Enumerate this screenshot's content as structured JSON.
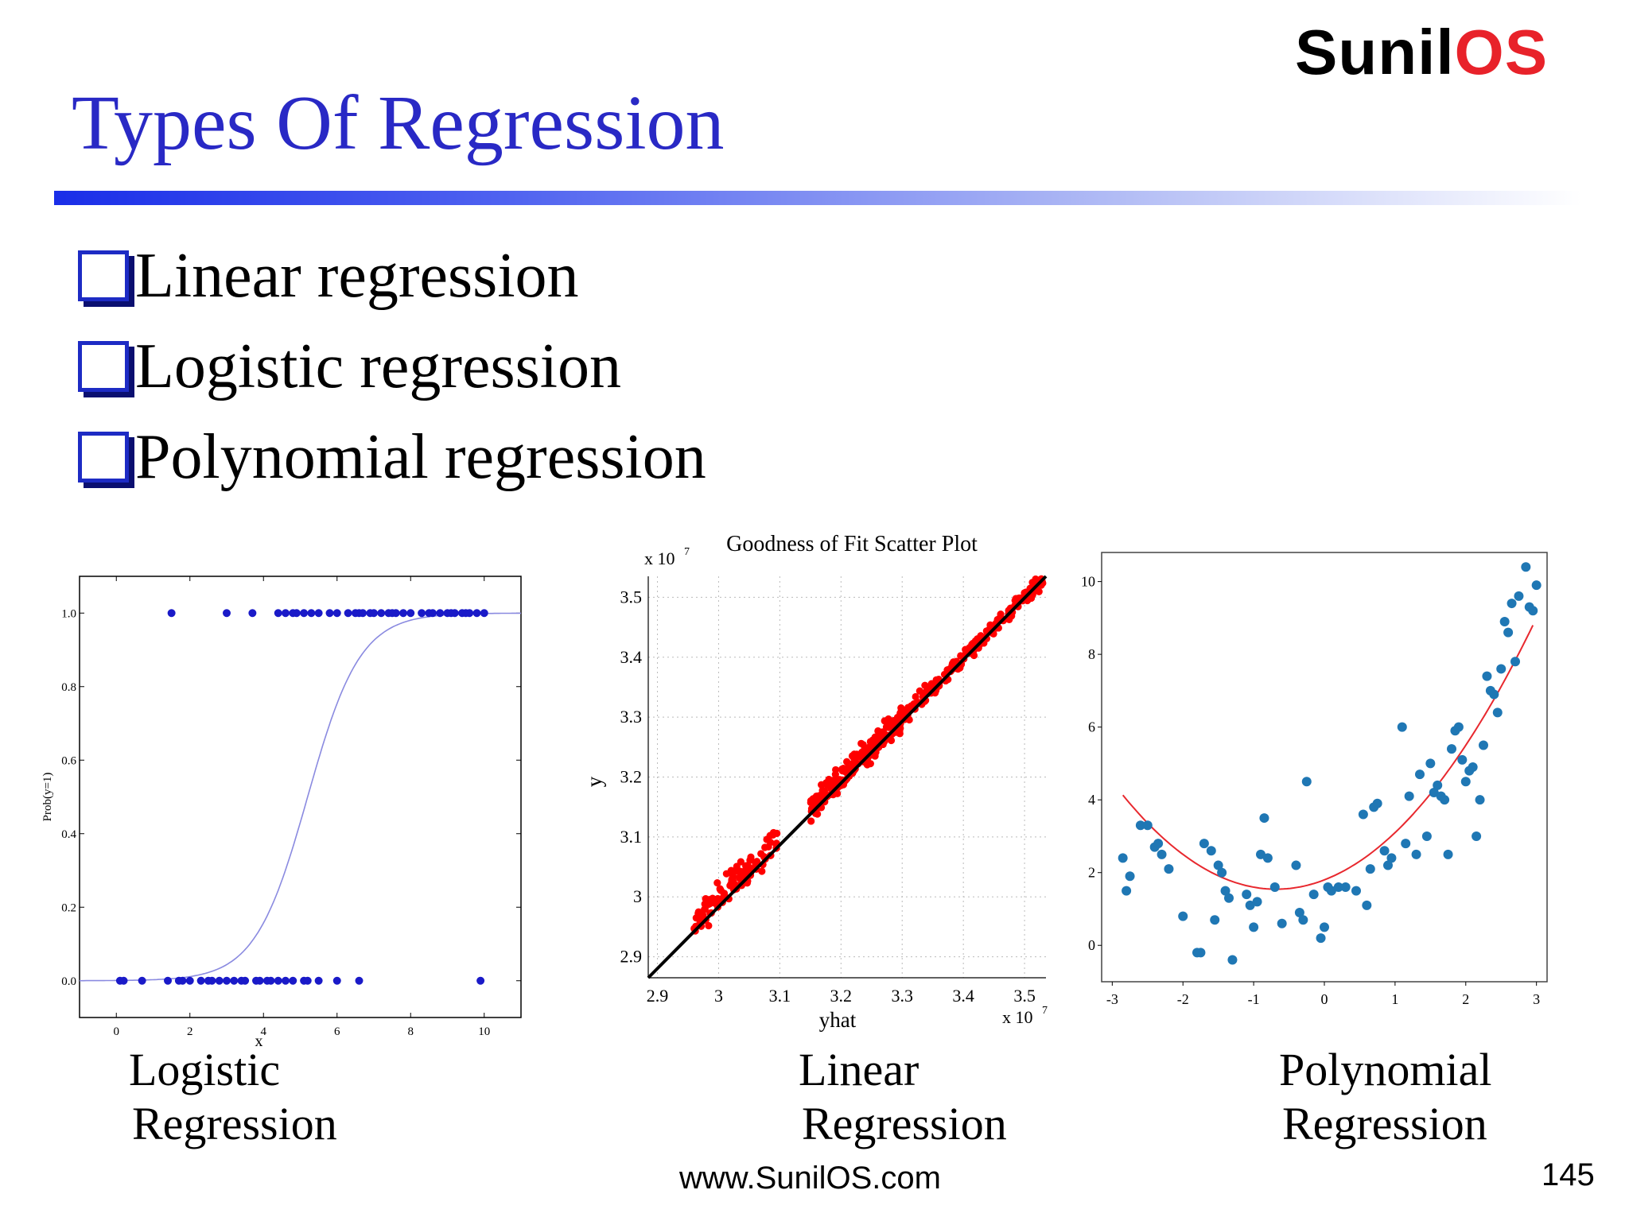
{
  "logo": {
    "dark_text": "Sunil",
    "red_text": "OS"
  },
  "title": "Types Of Regression",
  "bullets": [
    "Linear regression",
    "Logistic regression",
    "Polynomial regression"
  ],
  "plot_labels": {
    "logistic": [
      "Logistic",
      "Regression"
    ],
    "linear": [
      "Linear",
      "Regression"
    ],
    "polynomial": [
      "Polynomial",
      "Regression"
    ]
  },
  "footer": {
    "url": "www.SunilOS.com",
    "page": "145"
  },
  "colors": {
    "accent": "#2929c5",
    "logo_red": "#e8222a",
    "logistic_points": "#1a1ac8",
    "logistic_curve": "#8a8ae0",
    "linear_points": "#ff0000",
    "linear_line": "#000000",
    "poly_points": "#1f77b4",
    "poly_curve": "#e8282e"
  },
  "chart_data": [
    {
      "type": "scatter",
      "name": "logistic",
      "xlabel": "x",
      "ylabel": "Prob(y=1)",
      "xlim": [
        -1,
        11
      ],
      "ylim": [
        -0.1,
        1.1
      ],
      "xticks": [
        0,
        2,
        4,
        6,
        8,
        10
      ],
      "yticks": [
        "0.0",
        "0.2",
        "0.4",
        "0.6",
        "0.8",
        "1.0"
      ],
      "curve": {
        "midpoint": 5.2,
        "steepness": 1.4
      },
      "points_y1_x": [
        1.5,
        3.0,
        3.7,
        4.4,
        4.6,
        4.8,
        4.9,
        5.1,
        5.3,
        5.5,
        5.8,
        6.0,
        6.3,
        6.5,
        6.6,
        6.7,
        6.9,
        7.0,
        7.2,
        7.4,
        7.5,
        7.6,
        7.8,
        8.0,
        8.3,
        8.5,
        8.6,
        8.8,
        9.0,
        9.1,
        9.2,
        9.4,
        9.5,
        9.6,
        9.8,
        10.0
      ],
      "points_y0_x": [
        0.1,
        0.2,
        0.7,
        1.4,
        1.7,
        1.8,
        2.0,
        2.3,
        2.5,
        2.6,
        2.8,
        3.0,
        3.2,
        3.4,
        3.5,
        3.8,
        3.9,
        4.1,
        4.2,
        4.4,
        4.6,
        4.8,
        5.1,
        5.2,
        5.5,
        6.0,
        6.6,
        9.9
      ]
    },
    {
      "type": "scatter",
      "name": "linear",
      "title": "Goodness of Fit Scatter Plot",
      "xlabel": "yhat",
      "ylabel": "y",
      "scale_label_x": "x 10",
      "scale_label_y": "x 10",
      "scale_exp": "7",
      "xlim": [
        2.885,
        3.535
      ],
      "ylim": [
        2.865,
        3.535
      ],
      "xticks": [
        "2.9",
        "3",
        "3.1",
        "3.2",
        "3.3",
        "3.4",
        "3.5"
      ],
      "yticks": [
        "2.9",
        "3",
        "3.1",
        "3.2",
        "3.3",
        "3.4",
        "3.5"
      ],
      "fit_line": [
        [
          2.885,
          2.865
        ],
        [
          3.535,
          3.535
        ]
      ],
      "clusters": [
        {
          "from": 2.96,
          "to": 3.1,
          "count": 110,
          "spread": 0.035
        },
        {
          "from": 3.15,
          "to": 3.3,
          "count": 200,
          "spread": 0.03
        },
        {
          "from": 3.3,
          "to": 3.53,
          "count": 170,
          "spread": 0.02
        }
      ]
    },
    {
      "type": "scatter",
      "name": "polynomial",
      "xlim": [
        -3.15,
        3.15
      ],
      "ylim": [
        -1.0,
        10.8
      ],
      "xticks": [
        "-3",
        "-2",
        "-1",
        "0",
        "1",
        "2",
        "3"
      ],
      "yticks": [
        "0",
        "2",
        "4",
        "6",
        "8",
        "10"
      ],
      "curve_coeffs": [
        1.8,
        0.75,
        0.55
      ],
      "points": [
        [
          -2.85,
          2.4
        ],
        [
          -2.8,
          1.5
        ],
        [
          -2.75,
          1.9
        ],
        [
          -2.6,
          3.3
        ],
        [
          -2.5,
          3.3
        ],
        [
          -2.4,
          2.7
        ],
        [
          -2.35,
          2.8
        ],
        [
          -2.3,
          2.5
        ],
        [
          -2.2,
          2.1
        ],
        [
          -2.0,
          0.8
        ],
        [
          -1.8,
          -0.2
        ],
        [
          -1.75,
          -0.2
        ],
        [
          -1.7,
          2.8
        ],
        [
          -1.6,
          2.6
        ],
        [
          -1.55,
          0.7
        ],
        [
          -1.5,
          2.2
        ],
        [
          -1.45,
          2.0
        ],
        [
          -1.4,
          1.5
        ],
        [
          -1.35,
          1.3
        ],
        [
          -1.3,
          -0.4
        ],
        [
          -1.1,
          1.4
        ],
        [
          -1.05,
          1.1
        ],
        [
          -1.0,
          0.5
        ],
        [
          -0.95,
          1.2
        ],
        [
          -0.9,
          2.5
        ],
        [
          -0.85,
          3.5
        ],
        [
          -0.8,
          2.4
        ],
        [
          -0.7,
          1.6
        ],
        [
          -0.6,
          0.6
        ],
        [
          -0.4,
          2.2
        ],
        [
          -0.35,
          0.9
        ],
        [
          -0.3,
          0.7
        ],
        [
          -0.25,
          4.5
        ],
        [
          -0.15,
          1.4
        ],
        [
          -0.05,
          0.2
        ],
        [
          0.0,
          0.5
        ],
        [
          0.05,
          1.6
        ],
        [
          0.1,
          1.5
        ],
        [
          0.2,
          1.6
        ],
        [
          0.3,
          1.6
        ],
        [
          0.45,
          1.5
        ],
        [
          0.55,
          3.6
        ],
        [
          0.6,
          1.1
        ],
        [
          0.65,
          2.1
        ],
        [
          0.7,
          3.8
        ],
        [
          0.75,
          3.9
        ],
        [
          0.85,
          2.6
        ],
        [
          0.9,
          2.2
        ],
        [
          0.95,
          2.4
        ],
        [
          1.1,
          6.0
        ],
        [
          1.15,
          2.8
        ],
        [
          1.2,
          4.1
        ],
        [
          1.3,
          2.5
        ],
        [
          1.35,
          4.7
        ],
        [
          1.45,
          3.0
        ],
        [
          1.5,
          5.0
        ],
        [
          1.55,
          4.2
        ],
        [
          1.6,
          4.4
        ],
        [
          1.65,
          4.1
        ],
        [
          1.7,
          4.0
        ],
        [
          1.75,
          2.5
        ],
        [
          1.8,
          5.4
        ],
        [
          1.85,
          5.9
        ],
        [
          1.9,
          6.0
        ],
        [
          1.95,
          5.1
        ],
        [
          2.0,
          4.5
        ],
        [
          2.05,
          4.8
        ],
        [
          2.1,
          4.9
        ],
        [
          2.15,
          3.0
        ],
        [
          2.2,
          4.0
        ],
        [
          2.25,
          5.5
        ],
        [
          2.3,
          7.4
        ],
        [
          2.35,
          7.0
        ],
        [
          2.4,
          6.9
        ],
        [
          2.45,
          6.4
        ],
        [
          2.5,
          7.6
        ],
        [
          2.55,
          8.9
        ],
        [
          2.6,
          8.6
        ],
        [
          2.65,
          9.4
        ],
        [
          2.7,
          7.8
        ],
        [
          2.75,
          9.6
        ],
        [
          2.85,
          10.4
        ],
        [
          2.9,
          9.3
        ],
        [
          2.95,
          9.2
        ],
        [
          3.0,
          9.9
        ]
      ]
    }
  ]
}
